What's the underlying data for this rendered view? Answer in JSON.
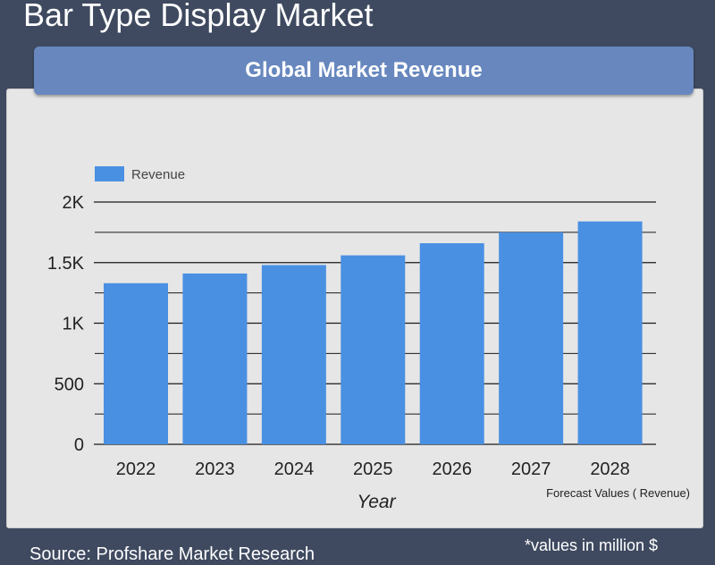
{
  "page": {
    "title": "Bar Type Display Market",
    "banner": "Global Market Revenue",
    "source": "Source: Profshare Market Research",
    "unit_note": "*values in million $"
  },
  "colors": {
    "bar": "#4a90e2",
    "background": "#3f4a60",
    "panel": "#e6e6e6",
    "banner": "#6787be"
  },
  "chart_data": {
    "type": "bar",
    "categories": [
      "2022",
      "2023",
      "2024",
      "2025",
      "2026",
      "2027",
      "2028"
    ],
    "series": [
      {
        "name": "Revenue",
        "values": [
          1330,
          1410,
          1480,
          1560,
          1660,
          1750,
          1840
        ]
      }
    ],
    "xlabel": "Year",
    "ylabel": "",
    "ylim": [
      0,
      2000
    ],
    "yticks": [
      0,
      500,
      1000,
      1500,
      2000
    ],
    "ytick_labels": [
      "0",
      "500",
      "1K",
      "1.5K",
      "2K"
    ],
    "minor_gridlines": true,
    "legend_position": "top-left",
    "annotation": "Forecast Values ( Revenue)"
  }
}
